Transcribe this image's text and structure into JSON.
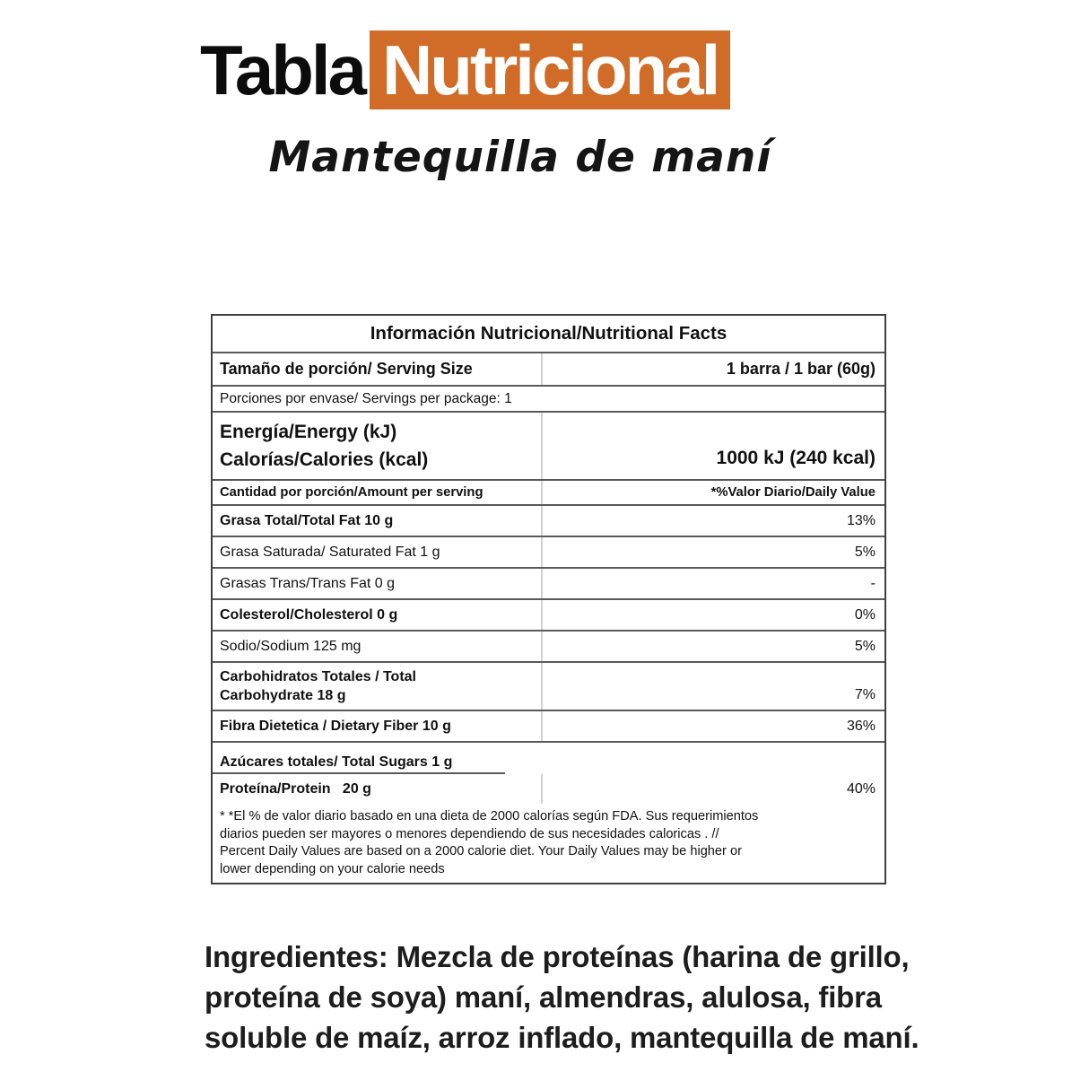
{
  "brand": {
    "title_black": "Tabla",
    "title_highlight": "Nutricional",
    "accent_color": "#d06c28",
    "product_name": "Mantequilla de maní"
  },
  "table": {
    "title": "Información Nutricional/Nutritional Facts",
    "serving_size_label": "Tamaño de porción/ Serving Size",
    "serving_size_value": "1 barra / 1 bar (60g)",
    "servings_per_package": "Porciones por envase/ Servings per package: 1",
    "energy_label": "Energía/Energy (kJ)\nCalorías/Calories (kcal)",
    "energy_value": "1000 kJ (240 kcal)",
    "column_left": "Cantidad por porción/Amount per serving",
    "column_right": "*%Valor Diario/Daily Value",
    "rows": [
      {
        "label": "Grasa Total/Total Fat 10 g",
        "value": "13%",
        "bold": true
      },
      {
        "label": "Grasa Saturada/ Saturated Fat 1 g",
        "value": "5%",
        "bold": false
      },
      {
        "label": "Grasas Trans/Trans Fat 0 g",
        "value": "-",
        "bold": false
      },
      {
        "label": "Colesterol/Cholesterol 0 g",
        "value": "0%",
        "bold": true
      },
      {
        "label": "Sodio/Sodium 125 mg",
        "value": "5%",
        "bold": false
      },
      {
        "label": "Carbohidratos Totales / Total\nCarbohydrate 18 g",
        "value": "7%",
        "bold": true,
        "tall": true
      },
      {
        "label": "Fibra Dietetica / Dietary Fiber 10 g",
        "value": "36%",
        "bold": true
      },
      {
        "label": "Azúcares totales/ Total Sugars 1 g",
        "value": "",
        "bold": true,
        "span": true
      },
      {
        "label": "Proteína/Protein   20 g",
        "value": "40%",
        "bold": true
      }
    ],
    "footnote": "* *El % de valor diario basado en una dieta de 2000 calorías según FDA. Sus requerimientos\ndiarios pueden ser mayores o menores dependiendo de sus necesidades caloricas . //\nPercent Daily Values are based on a 2000 calorie diet. Your Daily Values may be higher or\nlower depending on your calorie needs"
  },
  "ingredients": {
    "text": "Ingredientes: Mezcla de proteínas (harina de grillo,\nproteína de soya) maní, almendras, alulosa, fibra\nsoluble de maíz, arroz inflado, mantequilla de maní."
  }
}
